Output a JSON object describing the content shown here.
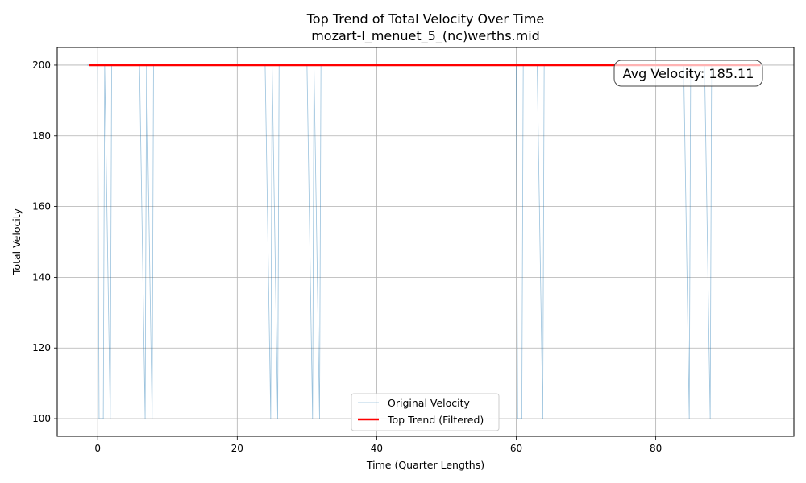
{
  "chart_data": {
    "type": "line",
    "title": "Top Trend of Total Velocity Over Time",
    "subtitle": "mozart-l_menuet_5_(nc)werths.mid",
    "xlabel": "Time (Quarter Lengths)",
    "ylabel": "Total Velocity",
    "xlim": [
      -5.8,
      99.8
    ],
    "ylim": [
      95,
      205
    ],
    "xticks": [
      0,
      20,
      40,
      60,
      80
    ],
    "yticks": [
      100,
      120,
      140,
      160,
      180,
      200
    ],
    "grid": true,
    "legend_position": "bottom-center",
    "annotation": "Avg Velocity: 185.11",
    "series": [
      {
        "name": "Original Velocity",
        "color": "#1f77b4",
        "style": "thin-line",
        "x": [
          -1.5,
          -1,
          0,
          0.2,
          0.8,
          1,
          1.8,
          2,
          6,
          6.8,
          7,
          7.8,
          8,
          20,
          24,
          24.8,
          25,
          25.8,
          26,
          30,
          30.8,
          31,
          31.8,
          32,
          40,
          60,
          60.2,
          60.8,
          61,
          63,
          63.8,
          64,
          80,
          84,
          84.8,
          85,
          87,
          87.8,
          88,
          95
        ],
        "y": [
          200,
          200,
          200,
          100,
          100,
          200,
          100,
          200,
          200,
          100,
          200,
          100,
          200,
          200,
          200,
          100,
          200,
          100,
          200,
          200,
          100,
          200,
          100,
          200,
          200,
          200,
          100,
          100,
          200,
          200,
          100,
          200,
          200,
          200,
          100,
          200,
          200,
          100,
          200,
          200
        ]
      },
      {
        "name": "Top Trend (Filtered)",
        "color": "#ff0000",
        "style": "thick-line",
        "x": [
          -1.2,
          95
        ],
        "y": [
          200,
          200
        ]
      }
    ]
  }
}
